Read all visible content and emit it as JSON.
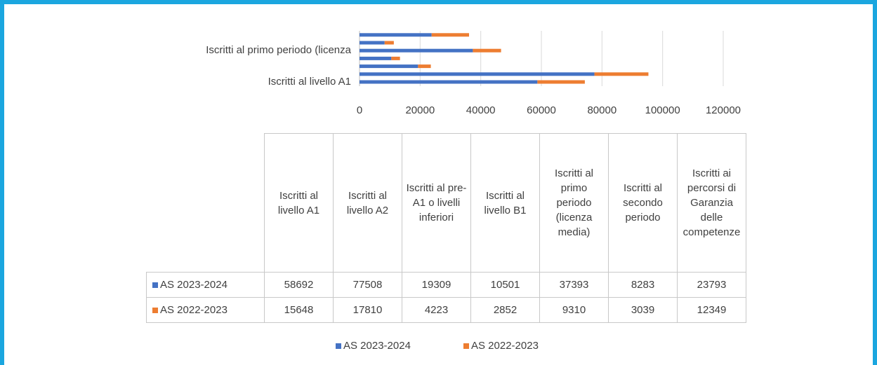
{
  "chart_data": {
    "type": "stacked_barh",
    "categories": [
      "Iscritti al livello A1",
      "Iscritti al livello A2",
      "Iscritti al pre-A1 o livelli inferiori",
      "Iscritti al livello B1",
      "Iscritti al primo periodo (licenza media)",
      "Iscritti al secondo periodo",
      "Iscritti ai percorsi di Garanzia delle competenze"
    ],
    "axis_labels": [
      "Iscritti al livello A1",
      null,
      null,
      null,
      "Iscritti al primo periodo (licenza",
      null,
      null
    ],
    "series": [
      {
        "name": "AS 2023-2024",
        "color": "#4472c4",
        "values": [
          58692,
          77508,
          19309,
          10501,
          37393,
          8283,
          23793
        ]
      },
      {
        "name": "AS 2022-2023",
        "color": "#ed7d31",
        "values": [
          15648,
          17810,
          4223,
          2852,
          9310,
          3039,
          12349
        ]
      }
    ],
    "xlim": [
      0,
      120000
    ],
    "xticks": [
      0,
      20000,
      40000,
      60000,
      80000,
      100000,
      120000
    ],
    "grid": true
  }
}
